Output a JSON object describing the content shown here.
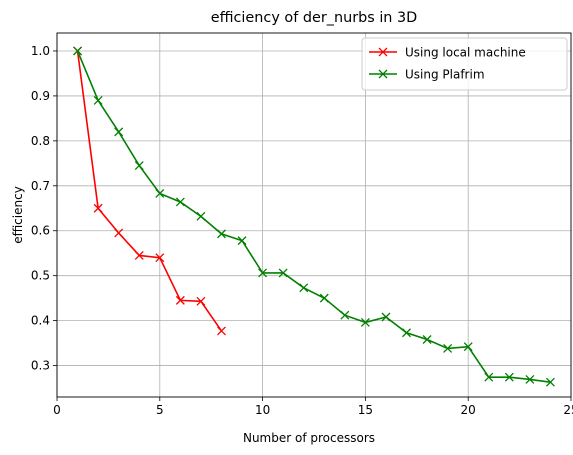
{
  "chart_data": {
    "type": "line",
    "title": "efficiency of der_nurbs in 3D",
    "xlabel": "Number of processors",
    "ylabel": "efficiency",
    "xlim": [
      0,
      25
    ],
    "ylim": [
      0.23,
      1.04
    ],
    "xticks": [
      0,
      5,
      10,
      15,
      20,
      25
    ],
    "yticks": [
      0.3,
      0.4,
      0.5,
      0.6,
      0.7,
      0.8,
      0.9,
      1.0
    ],
    "grid": true,
    "legend_position": "top-right",
    "marker": "x",
    "series": [
      {
        "name": "Using local machine",
        "color": "#ff0000",
        "x": [
          1,
          2,
          3,
          4,
          5,
          6,
          7,
          8
        ],
        "y": [
          1.0,
          0.65,
          0.595,
          0.545,
          0.54,
          0.445,
          0.443,
          0.377
        ]
      },
      {
        "name": "Using Plafrim",
        "color": "#008000",
        "x": [
          1,
          2,
          3,
          4,
          5,
          6,
          7,
          8,
          9,
          10,
          11,
          12,
          13,
          14,
          15,
          16,
          17,
          18,
          19,
          20,
          21,
          22,
          23,
          24
        ],
        "y": [
          1.0,
          0.89,
          0.82,
          0.745,
          0.683,
          0.664,
          0.632,
          0.593,
          0.578,
          0.506,
          0.506,
          0.473,
          0.45,
          0.412,
          0.396,
          0.408,
          0.373,
          0.358,
          0.338,
          0.342,
          0.274,
          0.274,
          0.269,
          0.263
        ]
      }
    ]
  }
}
